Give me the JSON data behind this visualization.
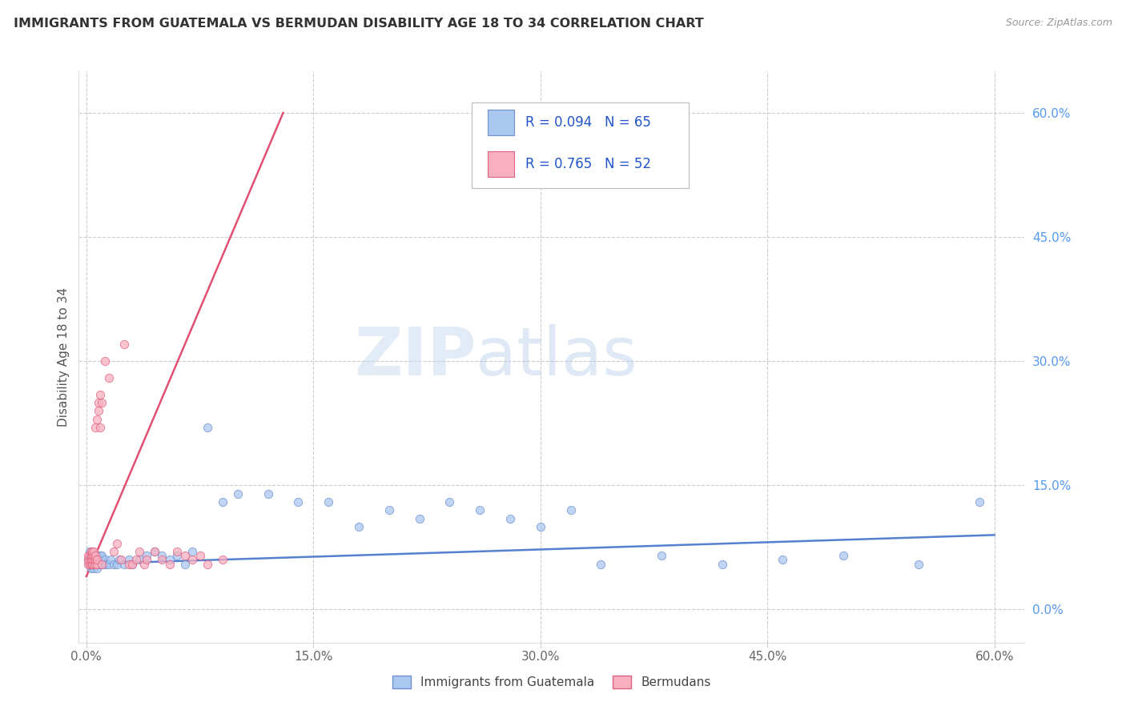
{
  "title": "IMMIGRANTS FROM GUATEMALA VS BERMUDAN DISABILITY AGE 18 TO 34 CORRELATION CHART",
  "source": "Source: ZipAtlas.com",
  "ylabel": "Disability Age 18 to 34",
  "xlim": [
    -0.005,
    0.62
  ],
  "ylim": [
    -0.04,
    0.65
  ],
  "xtick_labels": [
    "0.0%",
    "15.0%",
    "30.0%",
    "45.0%",
    "60.0%"
  ],
  "xtick_vals": [
    0.0,
    0.15,
    0.3,
    0.45,
    0.6
  ],
  "ytick_labels_right": [
    "60.0%",
    "45.0%",
    "30.0%",
    "15.0%",
    "0.0%"
  ],
  "ytick_vals": [
    0.6,
    0.45,
    0.3,
    0.15,
    0.0
  ],
  "series1_color": "#aac8f0",
  "series2_color": "#f8b0c0",
  "series1_edge_color": "#7090d0",
  "series2_edge_color": "#e06080",
  "series1_line_color": "#5580d0",
  "series2_line_color": "#e05070",
  "series1_label": "Immigrants from Guatemala",
  "series2_label": "Bermudans",
  "legend_r1": "R = 0.094",
  "legend_n1": "N = 65",
  "legend_r2": "R = 0.765",
  "legend_n2": "N = 52",
  "watermark_zip": "ZIP",
  "watermark_atlas": "atlas",
  "background_color": "#ffffff",
  "grid_color": "#cccccc",
  "title_color": "#333333",
  "source_color": "#999999",
  "ylabel_color": "#555555",
  "ytick_color": "#5599ee",
  "xtick_color": "#666666",
  "legend_text_color": "#2255cc",
  "series1_x": [
    0.001,
    0.002,
    0.002,
    0.003,
    0.003,
    0.003,
    0.004,
    0.004,
    0.004,
    0.005,
    0.005,
    0.005,
    0.006,
    0.006,
    0.006,
    0.007,
    0.007,
    0.008,
    0.008,
    0.008,
    0.009,
    0.009,
    0.01,
    0.01,
    0.01,
    0.011,
    0.012,
    0.013,
    0.015,
    0.016,
    0.018,
    0.02,
    0.022,
    0.025,
    0.028,
    0.03,
    0.035,
    0.04,
    0.045,
    0.05,
    0.055,
    0.06,
    0.065,
    0.07,
    0.08,
    0.09,
    0.1,
    0.12,
    0.14,
    0.16,
    0.18,
    0.2,
    0.22,
    0.24,
    0.26,
    0.28,
    0.3,
    0.32,
    0.34,
    0.38,
    0.42,
    0.46,
    0.5,
    0.55,
    0.59
  ],
  "series1_y": [
    0.06,
    0.055,
    0.07,
    0.05,
    0.06,
    0.065,
    0.055,
    0.065,
    0.07,
    0.05,
    0.06,
    0.065,
    0.055,
    0.06,
    0.065,
    0.05,
    0.06,
    0.055,
    0.06,
    0.065,
    0.055,
    0.065,
    0.055,
    0.06,
    0.065,
    0.055,
    0.06,
    0.055,
    0.055,
    0.06,
    0.055,
    0.055,
    0.06,
    0.055,
    0.06,
    0.055,
    0.06,
    0.065,
    0.07,
    0.065,
    0.06,
    0.065,
    0.055,
    0.07,
    0.22,
    0.13,
    0.14,
    0.14,
    0.13,
    0.13,
    0.1,
    0.12,
    0.11,
    0.13,
    0.12,
    0.11,
    0.1,
    0.12,
    0.055,
    0.065,
    0.055,
    0.06,
    0.065,
    0.055,
    0.13
  ],
  "series2_x": [
    0.001,
    0.001,
    0.001,
    0.002,
    0.002,
    0.002,
    0.003,
    0.003,
    0.003,
    0.003,
    0.004,
    0.004,
    0.004,
    0.004,
    0.005,
    0.005,
    0.005,
    0.005,
    0.006,
    0.006,
    0.006,
    0.006,
    0.007,
    0.007,
    0.007,
    0.008,
    0.008,
    0.009,
    0.009,
    0.01,
    0.01,
    0.012,
    0.015,
    0.018,
    0.02,
    0.023,
    0.025,
    0.028,
    0.03,
    0.033,
    0.035,
    0.038,
    0.04,
    0.045,
    0.05,
    0.055,
    0.06,
    0.065,
    0.07,
    0.075,
    0.08,
    0.09
  ],
  "series2_y": [
    0.055,
    0.06,
    0.065,
    0.055,
    0.06,
    0.065,
    0.055,
    0.06,
    0.065,
    0.07,
    0.055,
    0.06,
    0.065,
    0.07,
    0.055,
    0.06,
    0.065,
    0.07,
    0.055,
    0.06,
    0.065,
    0.22,
    0.055,
    0.06,
    0.23,
    0.24,
    0.25,
    0.22,
    0.26,
    0.055,
    0.25,
    0.3,
    0.28,
    0.07,
    0.08,
    0.06,
    0.32,
    0.055,
    0.055,
    0.06,
    0.07,
    0.055,
    0.06,
    0.07,
    0.06,
    0.055,
    0.07,
    0.065,
    0.06,
    0.065,
    0.055,
    0.06
  ],
  "series1_trend_x": [
    0.0,
    0.6
  ],
  "series1_trend_y": [
    0.055,
    0.09
  ],
  "series2_trend_x": [
    0.0,
    0.13
  ],
  "series2_trend_y": [
    0.04,
    0.6
  ]
}
